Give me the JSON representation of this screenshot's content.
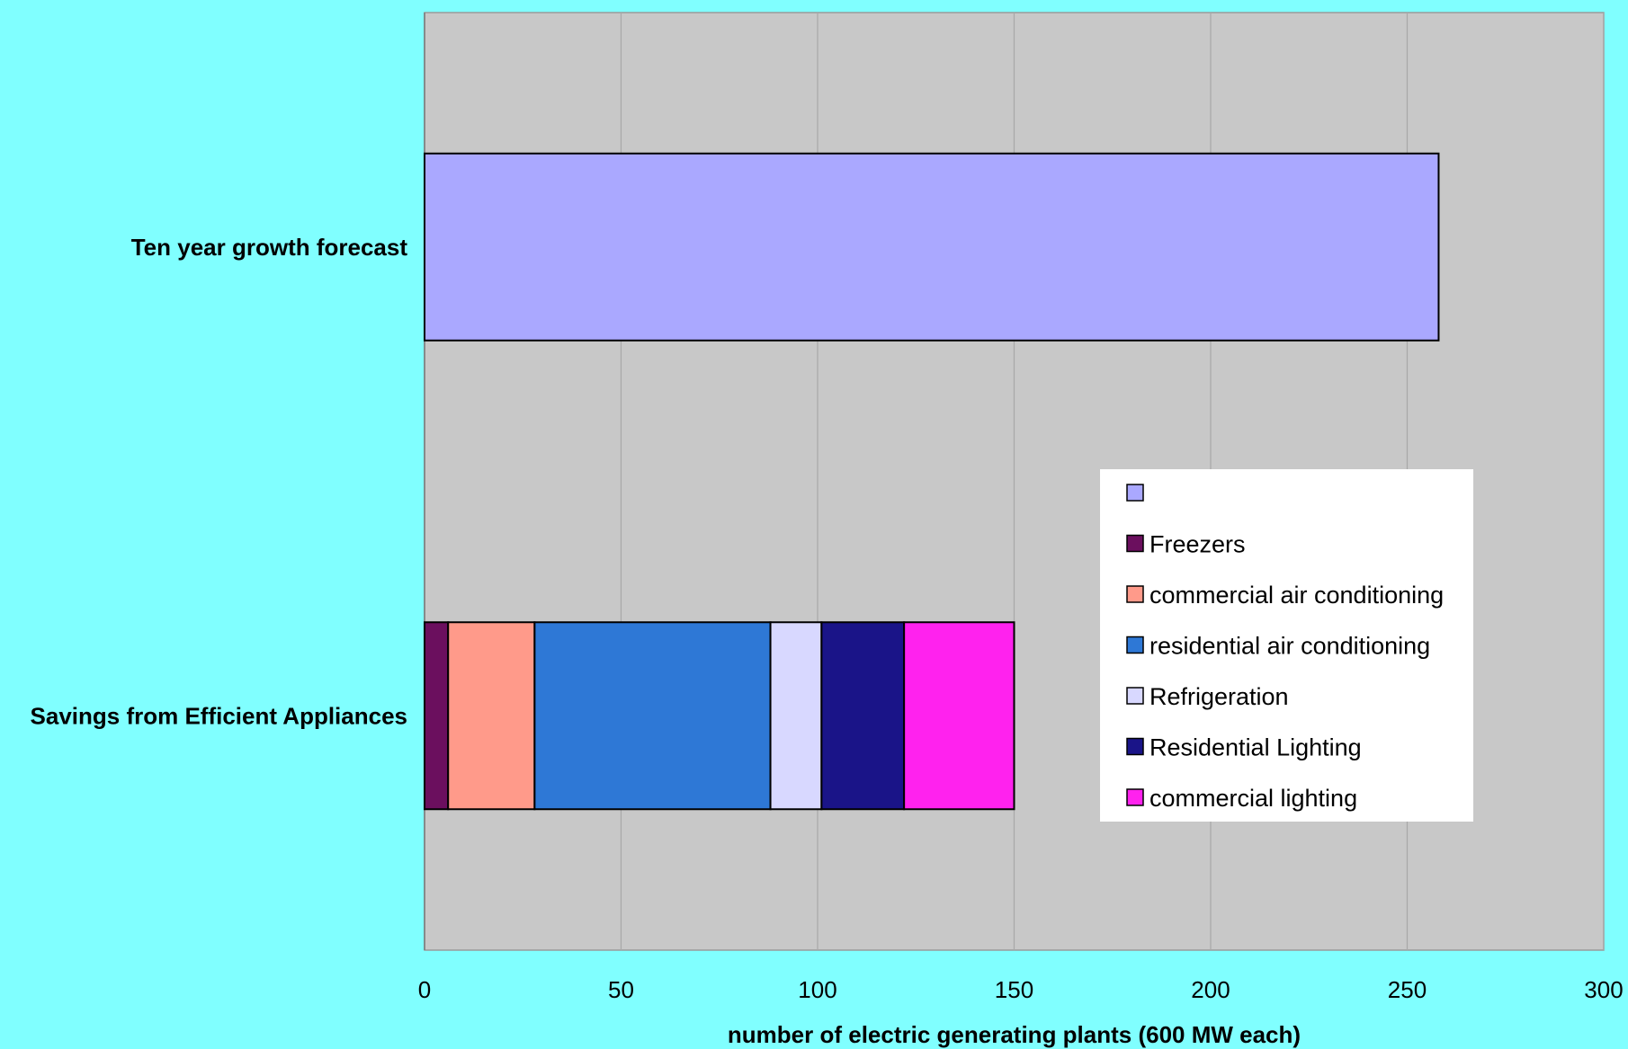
{
  "chart_data": {
    "type": "bar",
    "orientation": "horizontal",
    "stacked": true,
    "categories": [
      "Ten year growth forecast",
      "Savings from Efficient Appliances"
    ],
    "series": [
      {
        "name": "",
        "color": "#aaa8ff",
        "values": [
          258,
          0
        ]
      },
      {
        "name": "Freezers",
        "color": "#6b0f5e",
        "values": [
          0,
          6
        ]
      },
      {
        "name": "commercial air conditioning",
        "color": "#ff9a8a",
        "values": [
          0,
          22
        ]
      },
      {
        "name": "residential air conditioning",
        "color": "#2e78d6",
        "values": [
          0,
          60
        ]
      },
      {
        "name": "Refrigeration",
        "color": "#d8d8ff",
        "values": [
          0,
          13
        ]
      },
      {
        "name": "Residential Lighting",
        "color": "#1a1488",
        "values": [
          0,
          21
        ]
      },
      {
        "name": "commercial lighting",
        "color": "#ff22ee",
        "values": [
          0,
          28
        ]
      }
    ],
    "xlim": [
      0,
      300
    ],
    "xticks": [
      0,
      50,
      100,
      150,
      200,
      250,
      300
    ],
    "xlabel": "number of electric generating plants (600 MW each)",
    "ylabel": "",
    "title": "",
    "grid": true,
    "legend_position": "right",
    "colors": {
      "page_background": "#80ffff",
      "plot_background": "#c8c8c8",
      "gridline": "#a8a8a8"
    }
  }
}
